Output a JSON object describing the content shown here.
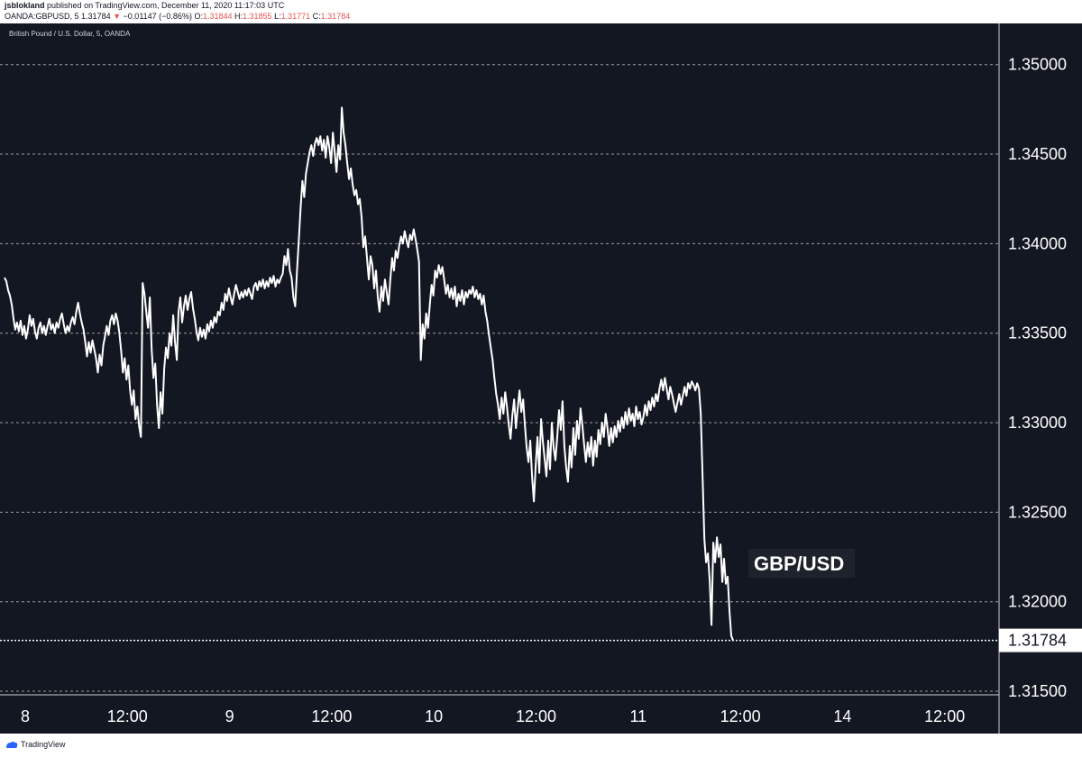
{
  "header": {
    "author": "jsblokland",
    "published": "published on TradingView.com, December 11, 2020 11:17:03 UTC",
    "symbol": "OANDA:GBPUSD, 5",
    "last": "1.31784",
    "arrow": "▼",
    "change": "−0.01147 (−0.86%)",
    "o_label": "O:",
    "o_val": "1.31844",
    "h_label": "H:",
    "h_val": "1.31855",
    "l_label": "L:",
    "l_val": "1.31771",
    "c_label": "C:",
    "c_val": "1.31784"
  },
  "pane_label": "British Pound / U.S. Dollar, 5, OANDA",
  "footer": {
    "brand": "TradingView",
    "icon": "tradingview-logo-icon"
  },
  "colors": {
    "background": "#131722",
    "line": "#ffffff",
    "grid": "#cccccc",
    "text": "#ffffff",
    "down": "#ef5350"
  },
  "chart_data": {
    "type": "line",
    "series": [],
    "annotation": "GBP/USD",
    "last_price_label": "1.31784",
    "x_ticks": [
      "8",
      "12:00",
      "9",
      "12:00",
      "10",
      "12:00",
      "11",
      "12:00",
      "14",
      "12:00"
    ],
    "y_ticks": [
      "1.31500",
      "1.32000",
      "1.32500",
      "1.33000",
      "1.33500",
      "1.34000",
      "1.34500",
      "1.35000"
    ],
    "ylim": [
      1.3148,
      1.3523
    ],
    "grid": "horizontal dashed",
    "points": [
      [
        0,
        1.3381
      ],
      [
        2,
        1.3379
      ],
      [
        4,
        1.3374
      ],
      [
        6,
        1.3371
      ],
      [
        8,
        1.3366
      ],
      [
        10,
        1.3358
      ],
      [
        12,
        1.3352
      ],
      [
        14,
        1.3356
      ],
      [
        16,
        1.3351
      ],
      [
        18,
        1.3357
      ],
      [
        20,
        1.3349
      ],
      [
        22,
        1.3354
      ],
      [
        24,
        1.3347
      ],
      [
        26,
        1.3352
      ],
      [
        28,
        1.336
      ],
      [
        30,
        1.3354
      ],
      [
        32,
        1.3358
      ],
      [
        34,
        1.3351
      ],
      [
        36,
        1.3347
      ],
      [
        38,
        1.3353
      ],
      [
        40,
        1.3356
      ],
      [
        42,
        1.335
      ],
      [
        44,
        1.3354
      ],
      [
        46,
        1.3349
      ],
      [
        48,
        1.3354
      ],
      [
        50,
        1.3358
      ],
      [
        52,
        1.3352
      ],
      [
        54,
        1.3355
      ],
      [
        56,
        1.335
      ],
      [
        58,
        1.3356
      ],
      [
        60,
        1.3353
      ],
      [
        62,
        1.3358
      ],
      [
        64,
        1.3361
      ],
      [
        66,
        1.3355
      ],
      [
        68,
        1.335
      ],
      [
        70,
        1.3354
      ],
      [
        72,
        1.3351
      ],
      [
        74,
        1.3356
      ],
      [
        76,
        1.3359
      ],
      [
        78,
        1.3355
      ],
      [
        80,
        1.3362
      ],
      [
        82,
        1.3367
      ],
      [
        84,
        1.3361
      ],
      [
        86,
        1.3356
      ],
      [
        88,
        1.3352
      ],
      [
        90,
        1.3345
      ],
      [
        92,
        1.3337
      ],
      [
        94,
        1.3345
      ],
      [
        96,
        1.3339
      ],
      [
        98,
        1.3346
      ],
      [
        100,
        1.3341
      ],
      [
        102,
        1.3336
      ],
      [
        104,
        1.3328
      ],
      [
        106,
        1.3338
      ],
      [
        108,
        1.3332
      ],
      [
        110,
        1.3343
      ],
      [
        112,
        1.3348
      ],
      [
        114,
        1.3354
      ],
      [
        116,
        1.3349
      ],
      [
        118,
        1.3357
      ],
      [
        120,
        1.336
      ],
      [
        122,
        1.3355
      ],
      [
        124,
        1.3361
      ],
      [
        126,
        1.3357
      ],
      [
        128,
        1.335
      ],
      [
        130,
        1.334
      ],
      [
        132,
        1.3328
      ],
      [
        134,
        1.3336
      ],
      [
        136,
        1.3324
      ],
      [
        138,
        1.3332
      ],
      [
        140,
        1.3318
      ],
      [
        142,
        1.331
      ],
      [
        144,
        1.3318
      ],
      [
        146,
        1.3302
      ],
      [
        148,
        1.3309
      ],
      [
        150,
        1.3298
      ],
      [
        152,
        1.3292
      ],
      [
        154,
        1.3378
      ],
      [
        156,
        1.3372
      ],
      [
        158,
        1.3362
      ],
      [
        160,
        1.3353
      ],
      [
        162,
        1.337
      ],
      [
        164,
        1.3341
      ],
      [
        166,
        1.3325
      ],
      [
        168,
        1.3333
      ],
      [
        170,
        1.331
      ],
      [
        172,
        1.3297
      ],
      [
        174,
        1.3317
      ],
      [
        176,
        1.3305
      ],
      [
        178,
        1.333
      ],
      [
        180,
        1.3342
      ],
      [
        182,
        1.3336
      ],
      [
        184,
        1.335
      ],
      [
        186,
        1.3343
      ],
      [
        188,
        1.336
      ],
      [
        190,
        1.3345
      ],
      [
        192,
        1.3335
      ],
      [
        194,
        1.3362
      ],
      [
        196,
        1.337
      ],
      [
        198,
        1.3356
      ],
      [
        200,
        1.3365
      ],
      [
        202,
        1.3371
      ],
      [
        204,
        1.3363
      ],
      [
        206,
        1.3369
      ],
      [
        208,
        1.3373
      ],
      [
        210,
        1.3364
      ],
      [
        212,
        1.3358
      ],
      [
        214,
        1.3351
      ],
      [
        216,
        1.3346
      ],
      [
        218,
        1.3353
      ],
      [
        220,
        1.3348
      ],
      [
        222,
        1.3352
      ],
      [
        224,
        1.3347
      ],
      [
        226,
        1.3355
      ],
      [
        228,
        1.3351
      ],
      [
        230,
        1.3357
      ],
      [
        232,
        1.3353
      ],
      [
        234,
        1.3359
      ],
      [
        236,
        1.3356
      ],
      [
        238,
        1.3362
      ],
      [
        240,
        1.336
      ],
      [
        242,
        1.3367
      ],
      [
        244,
        1.3363
      ],
      [
        246,
        1.3372
      ],
      [
        248,
        1.3368
      ],
      [
        250,
        1.3375
      ],
      [
        252,
        1.337
      ],
      [
        254,
        1.3366
      ],
      [
        256,
        1.3372
      ],
      [
        258,
        1.3377
      ],
      [
        260,
        1.3373
      ],
      [
        262,
        1.3369
      ],
      [
        264,
        1.3373
      ],
      [
        266,
        1.337
      ],
      [
        268,
        1.3374
      ],
      [
        270,
        1.3371
      ],
      [
        272,
        1.3375
      ],
      [
        274,
        1.3372
      ],
      [
        276,
        1.3369
      ],
      [
        278,
        1.3376
      ],
      [
        280,
        1.3378
      ],
      [
        282,
        1.3374
      ],
      [
        284,
        1.3379
      ],
      [
        286,
        1.3376
      ],
      [
        288,
        1.338
      ],
      [
        290,
        1.3375
      ],
      [
        292,
        1.3379
      ],
      [
        294,
        1.3376
      ],
      [
        296,
        1.3381
      ],
      [
        298,
        1.3378
      ],
      [
        300,
        1.3382
      ],
      [
        302,
        1.3376
      ],
      [
        304,
        1.338
      ],
      [
        306,
        1.3378
      ],
      [
        308,
        1.3381
      ],
      [
        310,
        1.3383
      ],
      [
        312,
        1.3393
      ],
      [
        314,
        1.3388
      ],
      [
        316,
        1.3397
      ],
      [
        318,
        1.3385
      ],
      [
        320,
        1.3381
      ],
      [
        322,
        1.337
      ],
      [
        324,
        1.3365
      ],
      [
        326,
        1.3385
      ],
      [
        328,
        1.3402
      ],
      [
        330,
        1.342
      ],
      [
        332,
        1.3435
      ],
      [
        334,
        1.3426
      ],
      [
        336,
        1.3439
      ],
      [
        338,
        1.3445
      ],
      [
        340,
        1.3451
      ],
      [
        342,
        1.3455
      ],
      [
        344,
        1.3449
      ],
      [
        346,
        1.3456
      ],
      [
        348,
        1.3459
      ],
      [
        350,
        1.3455
      ],
      [
        352,
        1.346
      ],
      [
        354,
        1.3452
      ],
      [
        356,
        1.3458
      ],
      [
        358,
        1.3448
      ],
      [
        360,
        1.346
      ],
      [
        362,
        1.3454
      ],
      [
        364,
        1.3445
      ],
      [
        366,
        1.3462
      ],
      [
        368,
        1.3451
      ],
      [
        370,
        1.344
      ],
      [
        372,
        1.3455
      ],
      [
        374,
        1.3447
      ],
      [
        376,
        1.3476
      ],
      [
        378,
        1.3462
      ],
      [
        380,
        1.3455
      ],
      [
        382,
        1.3445
      ],
      [
        384,
        1.3436
      ],
      [
        386,
        1.3442
      ],
      [
        388,
        1.3433
      ],
      [
        390,
        1.3427
      ],
      [
        392,
        1.343
      ],
      [
        394,
        1.3422
      ],
      [
        396,
        1.3425
      ],
      [
        398,
        1.3415
      ],
      [
        400,
        1.3398
      ],
      [
        402,
        1.3404
      ],
      [
        404,
        1.3392
      ],
      [
        406,
        1.338
      ],
      [
        408,
        1.3393
      ],
      [
        410,
        1.3388
      ],
      [
        412,
        1.3375
      ],
      [
        414,
        1.3385
      ],
      [
        416,
        1.337
      ],
      [
        418,
        1.3362
      ],
      [
        420,
        1.3376
      ],
      [
        422,
        1.3368
      ],
      [
        424,
        1.338
      ],
      [
        426,
        1.3373
      ],
      [
        428,
        1.3366
      ],
      [
        430,
        1.338
      ],
      [
        432,
        1.3392
      ],
      [
        434,
        1.3385
      ],
      [
        436,
        1.3396
      ],
      [
        438,
        1.3392
      ],
      [
        440,
        1.3399
      ],
      [
        442,
        1.3404
      ],
      [
        444,
        1.34
      ],
      [
        446,
        1.3407
      ],
      [
        448,
        1.3402
      ],
      [
        450,
        1.3398
      ],
      [
        452,
        1.3405
      ],
      [
        454,
        1.3402
      ],
      [
        456,
        1.3408
      ],
      [
        458,
        1.3403
      ],
      [
        460,
        1.3397
      ],
      [
        462,
        1.339
      ],
      [
        464,
        1.3335
      ],
      [
        466,
        1.3355
      ],
      [
        468,
        1.3347
      ],
      [
        470,
        1.3361
      ],
      [
        472,
        1.3353
      ],
      [
        474,
        1.3366
      ],
      [
        476,
        1.3377
      ],
      [
        478,
        1.3371
      ],
      [
        480,
        1.3385
      ],
      [
        482,
        1.3381
      ],
      [
        484,
        1.3388
      ],
      [
        486,
        1.3383
      ],
      [
        488,
        1.3387
      ],
      [
        490,
        1.338
      ],
      [
        492,
        1.3372
      ],
      [
        494,
        1.3377
      ],
      [
        496,
        1.337
      ],
      [
        498,
        1.3375
      ],
      [
        500,
        1.3369
      ],
      [
        502,
        1.3376
      ],
      [
        504,
        1.3365
      ],
      [
        506,
        1.3372
      ],
      [
        508,
        1.3368
      ],
      [
        510,
        1.3374
      ],
      [
        512,
        1.3366
      ],
      [
        514,
        1.3373
      ],
      [
        516,
        1.337
      ],
      [
        518,
        1.3374
      ],
      [
        520,
        1.3372
      ],
      [
        522,
        1.3376
      ],
      [
        524,
        1.337
      ],
      [
        526,
        1.3374
      ],
      [
        528,
        1.3369
      ],
      [
        530,
        1.3372
      ],
      [
        532,
        1.3366
      ],
      [
        534,
        1.3371
      ],
      [
        536,
        1.3362
      ],
      [
        538,
        1.3357
      ],
      [
        540,
        1.3349
      ],
      [
        542,
        1.3342
      ],
      [
        544,
        1.3335
      ],
      [
        546,
        1.3325
      ],
      [
        548,
        1.3316
      ],
      [
        550,
        1.331
      ],
      [
        552,
        1.3302
      ],
      [
        554,
        1.3314
      ],
      [
        556,
        1.3305
      ],
      [
        558,
        1.3317
      ],
      [
        560,
        1.3309
      ],
      [
        562,
        1.3299
      ],
      [
        564,
        1.3291
      ],
      [
        566,
        1.3304
      ],
      [
        568,
        1.3313
      ],
      [
        570,
        1.3297
      ],
      [
        572,
        1.3308
      ],
      [
        574,
        1.3318
      ],
      [
        576,
        1.3306
      ],
      [
        578,
        1.3313
      ],
      [
        580,
        1.3299
      ],
      [
        582,
        1.3286
      ],
      [
        584,
        1.3278
      ],
      [
        586,
        1.329
      ],
      [
        588,
        1.327
      ],
      [
        590,
        1.3256
      ],
      [
        592,
        1.3276
      ],
      [
        594,
        1.3292
      ],
      [
        596,
        1.3272
      ],
      [
        598,
        1.3302
      ],
      [
        600,
        1.329
      ],
      [
        602,
        1.328
      ],
      [
        604,
        1.327
      ],
      [
        606,
        1.329
      ],
      [
        608,
        1.3274
      ],
      [
        610,
        1.33
      ],
      [
        612,
        1.3286
      ],
      [
        614,
        1.3279
      ],
      [
        616,
        1.3292
      ],
      [
        618,
        1.3307
      ],
      [
        620,
        1.3296
      ],
      [
        622,
        1.3312
      ],
      [
        624,
        1.3287
      ],
      [
        626,
        1.3275
      ],
      [
        628,
        1.3267
      ],
      [
        630,
        1.3287
      ],
      [
        632,
        1.3275
      ],
      [
        634,
        1.3297
      ],
      [
        636,
        1.3282
      ],
      [
        638,
        1.3301
      ],
      [
        640,
        1.3291
      ],
      [
        642,
        1.3308
      ],
      [
        644,
        1.3299
      ],
      [
        646,
        1.3288
      ],
      [
        648,
        1.3278
      ],
      [
        650,
        1.3289
      ],
      [
        652,
        1.3281
      ],
      [
        654,
        1.3292
      ],
      [
        656,
        1.3276
      ],
      [
        658,
        1.329
      ],
      [
        660,
        1.3281
      ],
      [
        662,
        1.3296
      ],
      [
        664,
        1.3288
      ],
      [
        666,
        1.33
      ],
      [
        668,
        1.3292
      ],
      [
        670,
        1.3305
      ],
      [
        672,
        1.3297
      ],
      [
        674,
        1.3287
      ],
      [
        676,
        1.3297
      ],
      [
        678,
        1.3289
      ],
      [
        680,
        1.3298
      ],
      [
        682,
        1.3292
      ],
      [
        684,
        1.3301
      ],
      [
        686,
        1.3295
      ],
      [
        688,
        1.3303
      ],
      [
        690,
        1.3297
      ],
      [
        692,
        1.3306
      ],
      [
        694,
        1.3299
      ],
      [
        696,
        1.3308
      ],
      [
        698,
        1.3301
      ],
      [
        700,
        1.3305
      ],
      [
        702,
        1.3298
      ],
      [
        704,
        1.3309
      ],
      [
        706,
        1.3302
      ],
      [
        708,
        1.3306
      ],
      [
        710,
        1.3299
      ],
      [
        712,
        1.3303
      ],
      [
        714,
        1.331
      ],
      [
        716,
        1.3304
      ],
      [
        718,
        1.3312
      ],
      [
        720,
        1.3307
      ],
      [
        722,
        1.3314
      ],
      [
        724,
        1.3309
      ],
      [
        726,
        1.3316
      ],
      [
        728,
        1.3312
      ],
      [
        730,
        1.3319
      ],
      [
        732,
        1.3324
      ],
      [
        734,
        1.3318
      ],
      [
        736,
        1.3325
      ],
      [
        738,
        1.3319
      ],
      [
        740,
        1.3313
      ],
      [
        742,
        1.332
      ],
      [
        744,
        1.3316
      ],
      [
        746,
        1.3311
      ],
      [
        748,
        1.3306
      ],
      [
        750,
        1.3311
      ],
      [
        752,
        1.3316
      ],
      [
        754,
        1.331
      ],
      [
        756,
        1.3315
      ],
      [
        758,
        1.332
      ],
      [
        760,
        1.3315
      ],
      [
        762,
        1.3322
      ],
      [
        764,
        1.3319
      ],
      [
        766,
        1.3323
      ],
      [
        768,
        1.3321
      ],
      [
        770,
        1.3318
      ],
      [
        772,
        1.3322
      ],
      [
        774,
        1.3319
      ],
      [
        776,
        1.3305
      ],
      [
        778,
        1.327
      ],
      [
        780,
        1.3235
      ],
      [
        782,
        1.3222
      ],
      [
        784,
        1.3227
      ],
      [
        786,
        1.3212
      ],
      [
        788,
        1.3187
      ],
      [
        790,
        1.3233
      ],
      [
        792,
        1.3222
      ],
      [
        794,
        1.3236
      ],
      [
        796,
        1.3225
      ],
      [
        798,
        1.3232
      ],
      [
        800,
        1.3211
      ],
      [
        802,
        1.3224
      ],
      [
        804,
        1.321
      ],
      [
        806,
        1.3214
      ],
      [
        808,
        1.3195
      ],
      [
        810,
        1.3181
      ],
      [
        812,
        1.31784
      ]
    ]
  }
}
